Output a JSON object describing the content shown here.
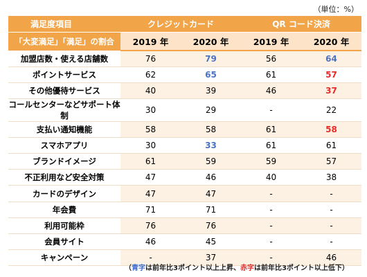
{
  "unit": "（単位：%）",
  "header": {
    "category_label": "満足度項目",
    "credit_card": "クレジットカード",
    "qr_code": "QR コード決済",
    "metric_label": "「大変満足」「満足」の割合",
    "years": [
      "2019 年",
      "2020 年",
      "2019 年",
      "2020 年"
    ]
  },
  "rows": [
    {
      "label": "加盟店数・使える店舗数",
      "cells": [
        "76",
        "79",
        "56",
        "64"
      ],
      "colors": [
        "",
        "blue",
        "",
        "blue"
      ]
    },
    {
      "label": "ポイントサービス",
      "cells": [
        "62",
        "65",
        "61",
        "57"
      ],
      "colors": [
        "",
        "blue",
        "",
        "red"
      ]
    },
    {
      "label": "その他優待サービス",
      "cells": [
        "40",
        "39",
        "46",
        "37"
      ],
      "colors": [
        "",
        "",
        "",
        "red"
      ]
    },
    {
      "label": "コールセンターなどサポート体制",
      "cells": [
        "30",
        "29",
        "-",
        "22"
      ],
      "colors": [
        "",
        "",
        "",
        ""
      ]
    },
    {
      "label": "支払い通知機能",
      "cells": [
        "58",
        "58",
        "61",
        "58"
      ],
      "colors": [
        "",
        "",
        "",
        "red"
      ]
    },
    {
      "label": "スマホアプリ",
      "cells": [
        "30",
        "33",
        "61",
        "61"
      ],
      "colors": [
        "",
        "blue",
        "",
        ""
      ]
    },
    {
      "label": "ブランドイメージ",
      "cells": [
        "61",
        "59",
        "59",
        "57"
      ],
      "colors": [
        "",
        "",
        "",
        ""
      ]
    },
    {
      "label": "不正利用など安全対策",
      "cells": [
        "47",
        "46",
        "40",
        "38"
      ],
      "colors": [
        "",
        "",
        "",
        ""
      ]
    },
    {
      "label": "カードのデザイン",
      "cells": [
        "47",
        "47",
        "-",
        "-"
      ],
      "colors": [
        "",
        "",
        "",
        ""
      ]
    },
    {
      "label": "年会費",
      "cells": [
        "71",
        "71",
        "-",
        "-"
      ],
      "colors": [
        "",
        "",
        "",
        ""
      ]
    },
    {
      "label": "利用可能枠",
      "cells": [
        "76",
        "76",
        "-",
        "-"
      ],
      "colors": [
        "",
        "",
        "",
        ""
      ]
    },
    {
      "label": "会員サイト",
      "cells": [
        "46",
        "45",
        "-",
        "-"
      ],
      "colors": [
        "",
        "",
        "",
        ""
      ]
    },
    {
      "label": "キャンペーン",
      "cells": [
        "-",
        "37",
        "-",
        "46"
      ],
      "colors": [
        "",
        "",
        "",
        ""
      ]
    }
  ],
  "note": {
    "open": "（",
    "blue_word": "青字",
    "blue_text": "は前年比3ポイント以上上昇、",
    "red_word": "赤字",
    "red_text": "は前年比3ポイント以上低下）"
  },
  "colors": {
    "header_orange": "#f2a548",
    "header_light": "#fde4c8",
    "row_stripe": "#fdf1e3",
    "increase_blue": "#4a73c5",
    "decrease_red": "#ea2929"
  }
}
